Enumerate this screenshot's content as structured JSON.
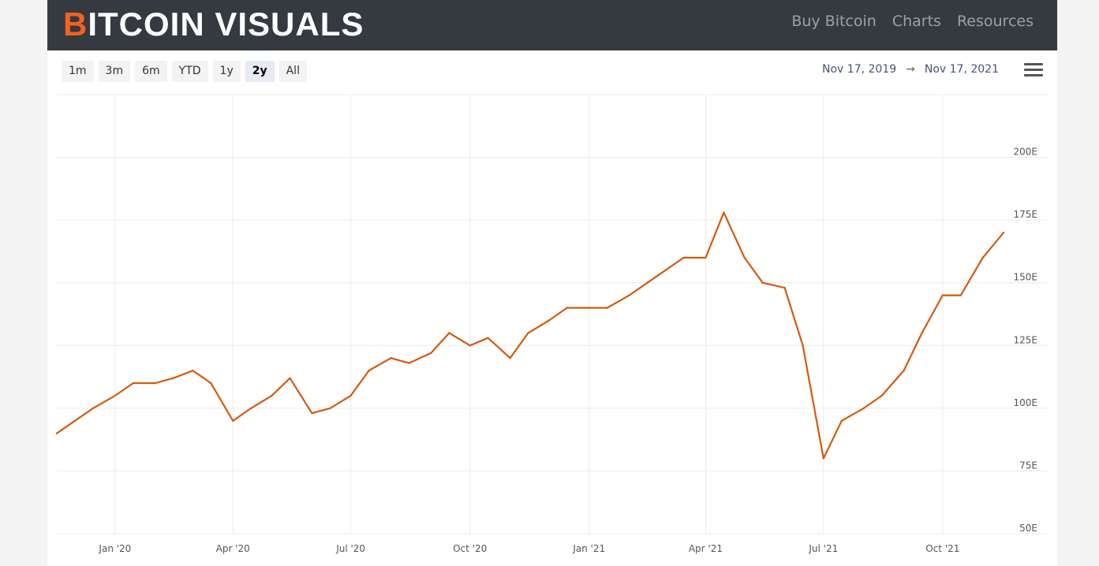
{
  "brand": {
    "first": "B",
    "rest": "ITCOIN VISUALS",
    "accent_color": "#f2631f"
  },
  "nav": [
    "Buy Bitcoin",
    "Charts",
    "Resources"
  ],
  "range_buttons": [
    "1m",
    "3m",
    "6m",
    "YTD",
    "1y",
    "2y",
    "All"
  ],
  "active_range": "2y",
  "date_range": {
    "from": "Nov 17, 2019",
    "arrow": "→",
    "to": "Nov 17, 2021"
  },
  "menu_icon": "hamburger-menu-icon",
  "chart_data": {
    "type": "line",
    "series": [
      {
        "color": "#d45a0f",
        "x": [
          "2019-11-17",
          "2019-12-01",
          "2019-12-15",
          "2020-01-01",
          "2020-01-15",
          "2020-02-01",
          "2020-02-15",
          "2020-03-01",
          "2020-03-15",
          "2020-04-01",
          "2020-04-15",
          "2020-05-01",
          "2020-05-15",
          "2020-06-01",
          "2020-06-15",
          "2020-07-01",
          "2020-07-15",
          "2020-08-01",
          "2020-08-15",
          "2020-09-01",
          "2020-09-15",
          "2020-10-01",
          "2020-10-15",
          "2020-11-01",
          "2020-11-15",
          "2020-12-01",
          "2020-12-15",
          "2021-01-01",
          "2021-01-15",
          "2021-02-01",
          "2021-02-15",
          "2021-03-01",
          "2021-03-15",
          "2021-04-01",
          "2021-04-15",
          "2021-05-01",
          "2021-05-15",
          "2021-06-01",
          "2021-06-15",
          "2021-07-01",
          "2021-07-15",
          "2021-08-01",
          "2021-08-15",
          "2021-09-01",
          "2021-09-15",
          "2021-10-01",
          "2021-10-15",
          "2021-11-01",
          "2021-11-17"
        ],
        "y": [
          90,
          95,
          100,
          105,
          110,
          110,
          112,
          115,
          110,
          95,
          100,
          105,
          112,
          98,
          100,
          105,
          115,
          120,
          118,
          122,
          130,
          125,
          128,
          120,
          130,
          135,
          140,
          140,
          140,
          145,
          150,
          155,
          160,
          160,
          178,
          160,
          150,
          148,
          125,
          80,
          95,
          100,
          105,
          115,
          130,
          145,
          145,
          160,
          170
        ]
      }
    ],
    "x_ticks": [
      "Jan '20",
      "Apr '20",
      "Jul '20",
      "Oct '20",
      "Jan '21",
      "Apr '21",
      "Jul '21",
      "Oct '21"
    ],
    "y_ticks": [
      "50E",
      "75E",
      "100E",
      "125E",
      "150E",
      "175E",
      "200E"
    ],
    "ylim": [
      50,
      225
    ],
    "xlim": [
      "2019-11-17",
      "2021-11-17"
    ],
    "grid": true
  }
}
